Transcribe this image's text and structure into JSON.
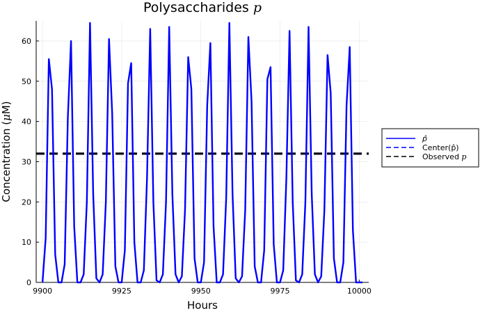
{
  "chart_data": {
    "type": "line",
    "title_text": "Polysaccharides ",
    "title_symbol": "p",
    "xlabel": "Hours",
    "ylabel_text": "Concentration (",
    "ylabel_symbol": "μ",
    "ylabel_suffix": "M)",
    "xlim": [
      9898,
      10003
    ],
    "ylim": [
      0,
      65
    ],
    "xticks": [
      9900,
      9925,
      9950,
      9975,
      10000
    ],
    "yticks": [
      0,
      10,
      20,
      30,
      40,
      50,
      60
    ],
    "grid": true,
    "legend_position": "outside-right",
    "series": [
      {
        "name": "p̂",
        "style": "solid",
        "color": "#0000ff",
        "x": [
          9900,
          9901,
          9902,
          9903,
          9904,
          9905,
          9906,
          9907,
          9908,
          9909,
          9910,
          9911,
          9912,
          9913,
          9914,
          9915,
          9916,
          9917,
          9918,
          9919,
          9920,
          9921,
          9922,
          9923,
          9924,
          9925,
          9926,
          9927,
          9928,
          9929,
          9930,
          9931,
          9932,
          9933,
          9934,
          9935,
          9936,
          9937,
          9938,
          9939,
          9940,
          9941,
          9942,
          9943,
          9944,
          9945,
          9946,
          9947,
          9948,
          9949,
          9950,
          9951,
          9952,
          9953,
          9954,
          9955,
          9956,
          9957,
          9958,
          9959,
          9960,
          9961,
          9962,
          9963,
          9964,
          9965,
          9966,
          9967,
          9968,
          9969,
          9970,
          9971,
          9972,
          9973,
          9974,
          9975,
          9976,
          9977,
          9978,
          9979,
          9980,
          9981,
          9982,
          9983,
          9984,
          9985,
          9986,
          9987,
          9988,
          9989,
          9990,
          9991,
          9992,
          9993,
          9994,
          9995,
          9996,
          9997,
          9998,
          9999,
          10000,
          10001
        ],
        "y": [
          0,
          11,
          55.5,
          48,
          7,
          0,
          0,
          4.5,
          41,
          60,
          14,
          0,
          0,
          2,
          20,
          64.5,
          22,
          1,
          0,
          2,
          20,
          60.5,
          42,
          4,
          0,
          0,
          8,
          49.5,
          54.5,
          10,
          0,
          0,
          3,
          26,
          63,
          20,
          0.5,
          0,
          2,
          20,
          63.5,
          22,
          2,
          0,
          1.5,
          18,
          56,
          48,
          6,
          0,
          0,
          5,
          44,
          59.5,
          14,
          0,
          0,
          2,
          21,
          64.5,
          22,
          1,
          0,
          1.5,
          18,
          61,
          45,
          4,
          0,
          0,
          8,
          50.5,
          53.5,
          9.5,
          0,
          0,
          3,
          26,
          62.5,
          20,
          0.5,
          0,
          2,
          20,
          63.5,
          22,
          2,
          0,
          1.5,
          18,
          56.5,
          47,
          6,
          0,
          0,
          5,
          44,
          58.5,
          13,
          0,
          0,
          0
        ]
      },
      {
        "name": "Center(p̂)",
        "style": "dashed",
        "color": "#0000ff",
        "y": 32
      },
      {
        "name": "Observed ",
        "symbol": "p",
        "style": "dashed",
        "color": "#000000",
        "y": 32
      }
    ]
  }
}
